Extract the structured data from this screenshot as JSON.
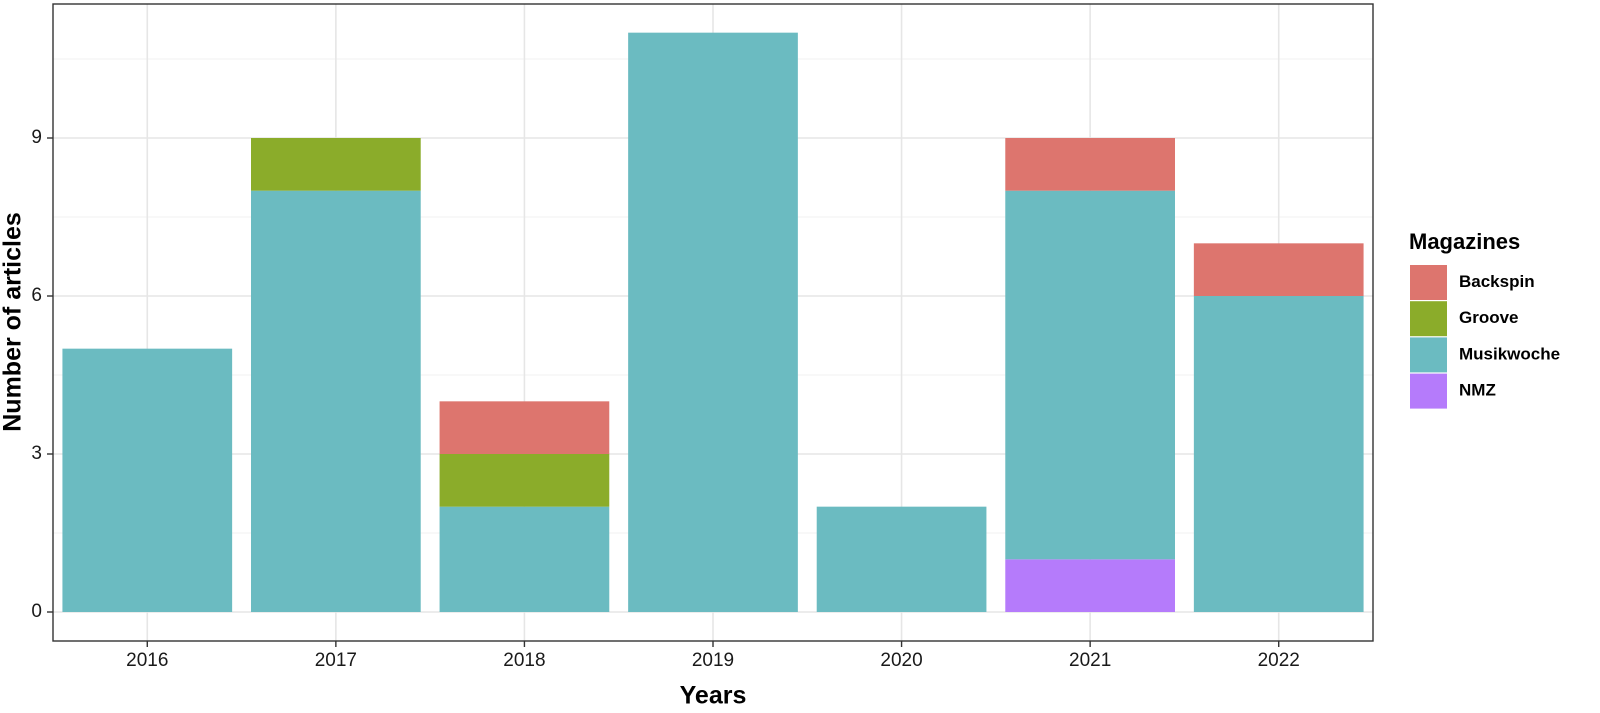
{
  "chart_data": {
    "type": "bar",
    "stacked": true,
    "title": "",
    "xlabel": "Years",
    "ylabel": "Number of articles",
    "categories": [
      "2016",
      "2017",
      "2018",
      "2019",
      "2020",
      "2021",
      "2022"
    ],
    "series": [
      {
        "name": "NMZ",
        "color": "#B57BFB",
        "values": [
          0,
          0,
          0,
          0,
          0,
          1,
          0
        ]
      },
      {
        "name": "Musikwoche",
        "color": "#6BBBC1",
        "values": [
          5,
          8,
          2,
          11,
          2,
          7,
          6
        ]
      },
      {
        "name": "Groove",
        "color": "#8BAC2A",
        "values": [
          0,
          1,
          1,
          0,
          0,
          0,
          0
        ]
      },
      {
        "name": "Backspin",
        "color": "#DD756E",
        "values": [
          0,
          0,
          1,
          0,
          0,
          1,
          1
        ]
      }
    ],
    "ylim": [
      0,
      11.5
    ],
    "yticks": [
      0,
      3,
      6,
      9
    ],
    "grid": true,
    "legend": {
      "title": "Magazines",
      "position": "right",
      "entries": [
        "Backspin",
        "Groove",
        "Musikwoche",
        "NMZ"
      ]
    }
  }
}
